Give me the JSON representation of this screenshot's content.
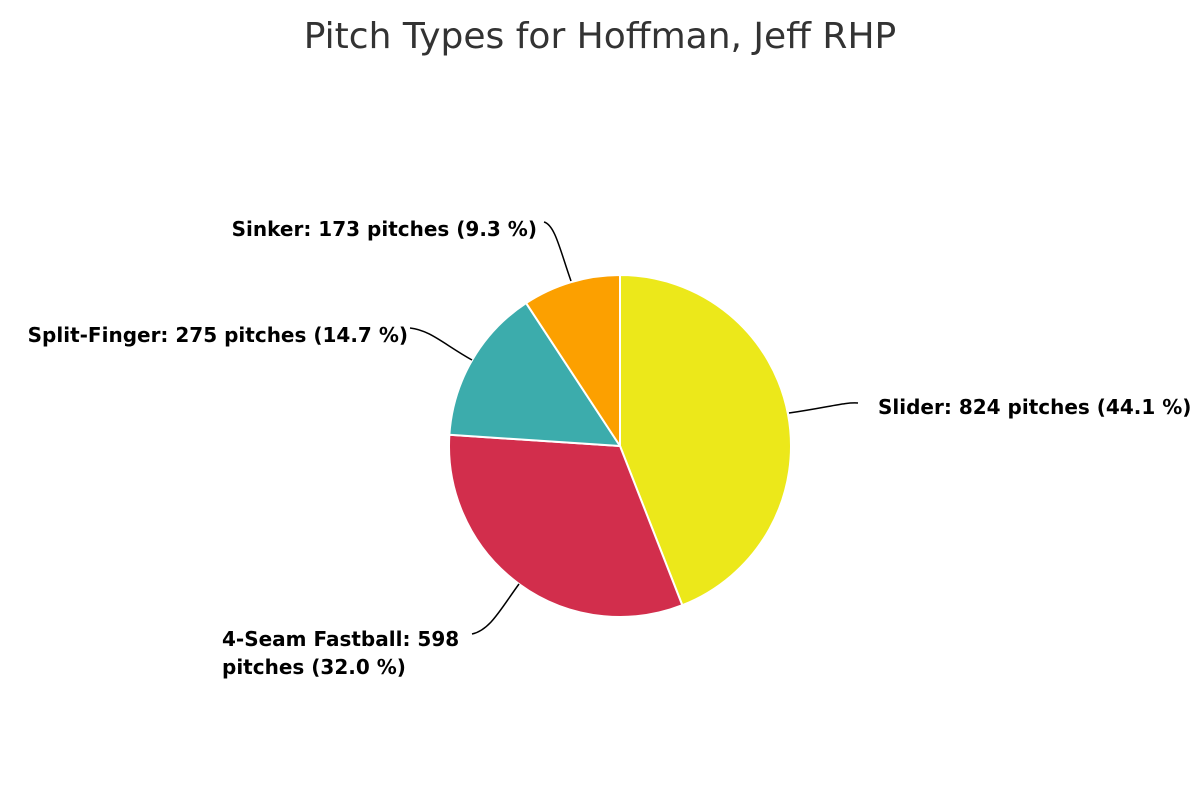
{
  "chart_data": {
    "type": "pie",
    "title": "Pitch Types for Hoffman, Jeff RHP",
    "start_angle_deg": 0,
    "direction": "clockwise",
    "slices": [
      {
        "name": "Slider",
        "value": 824,
        "percent": 44.1,
        "color": "#ece81a",
        "label_lines": [
          "Slider: 824 pitches (44.1 %)"
        ]
      },
      {
        "name": "4-Seam Fastball",
        "value": 598,
        "percent": 32.0,
        "color": "#d22e4c",
        "label_lines": [
          "4-Seam Fastball: 598",
          "pitches (32.0 %)"
        ]
      },
      {
        "name": "Split-Finger",
        "value": 275,
        "percent": 14.7,
        "color": "#3cacac",
        "label_lines": [
          "Split-Finger: 275 pitches (14.7 %)"
        ]
      },
      {
        "name": "Sinker",
        "value": 173,
        "percent": 9.3,
        "color": "#fca000",
        "label_lines": [
          "Sinker: 173 pitches (9.3 %)"
        ]
      }
    ]
  }
}
